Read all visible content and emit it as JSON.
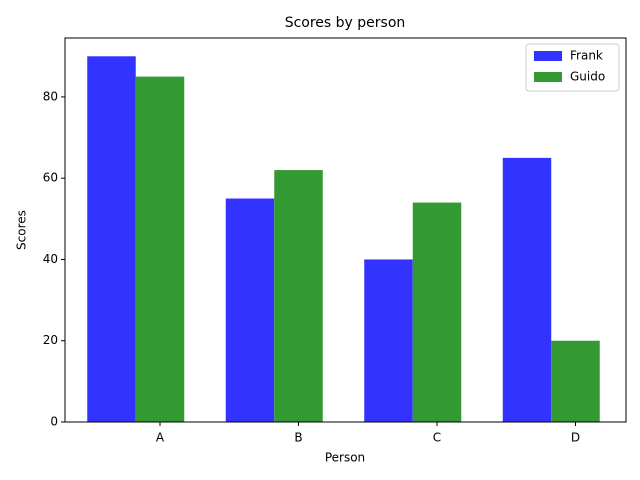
{
  "chart_data": {
    "type": "bar",
    "title": "Scores by person",
    "x_label": "Person",
    "y_label": "Scores",
    "categories": [
      "A",
      "B",
      "C",
      "D"
    ],
    "series": [
      {
        "name": "Frank",
        "color": "#3333ff",
        "values": [
          90,
          55,
          40,
          65
        ]
      },
      {
        "name": "Guido",
        "color": "#339933",
        "values": [
          85,
          62,
          54,
          20
        ]
      }
    ],
    "ylim": [
      0,
      94.5
    ],
    "yticks": [
      0,
      20,
      40,
      60,
      80
    ],
    "legend": "upper right"
  }
}
